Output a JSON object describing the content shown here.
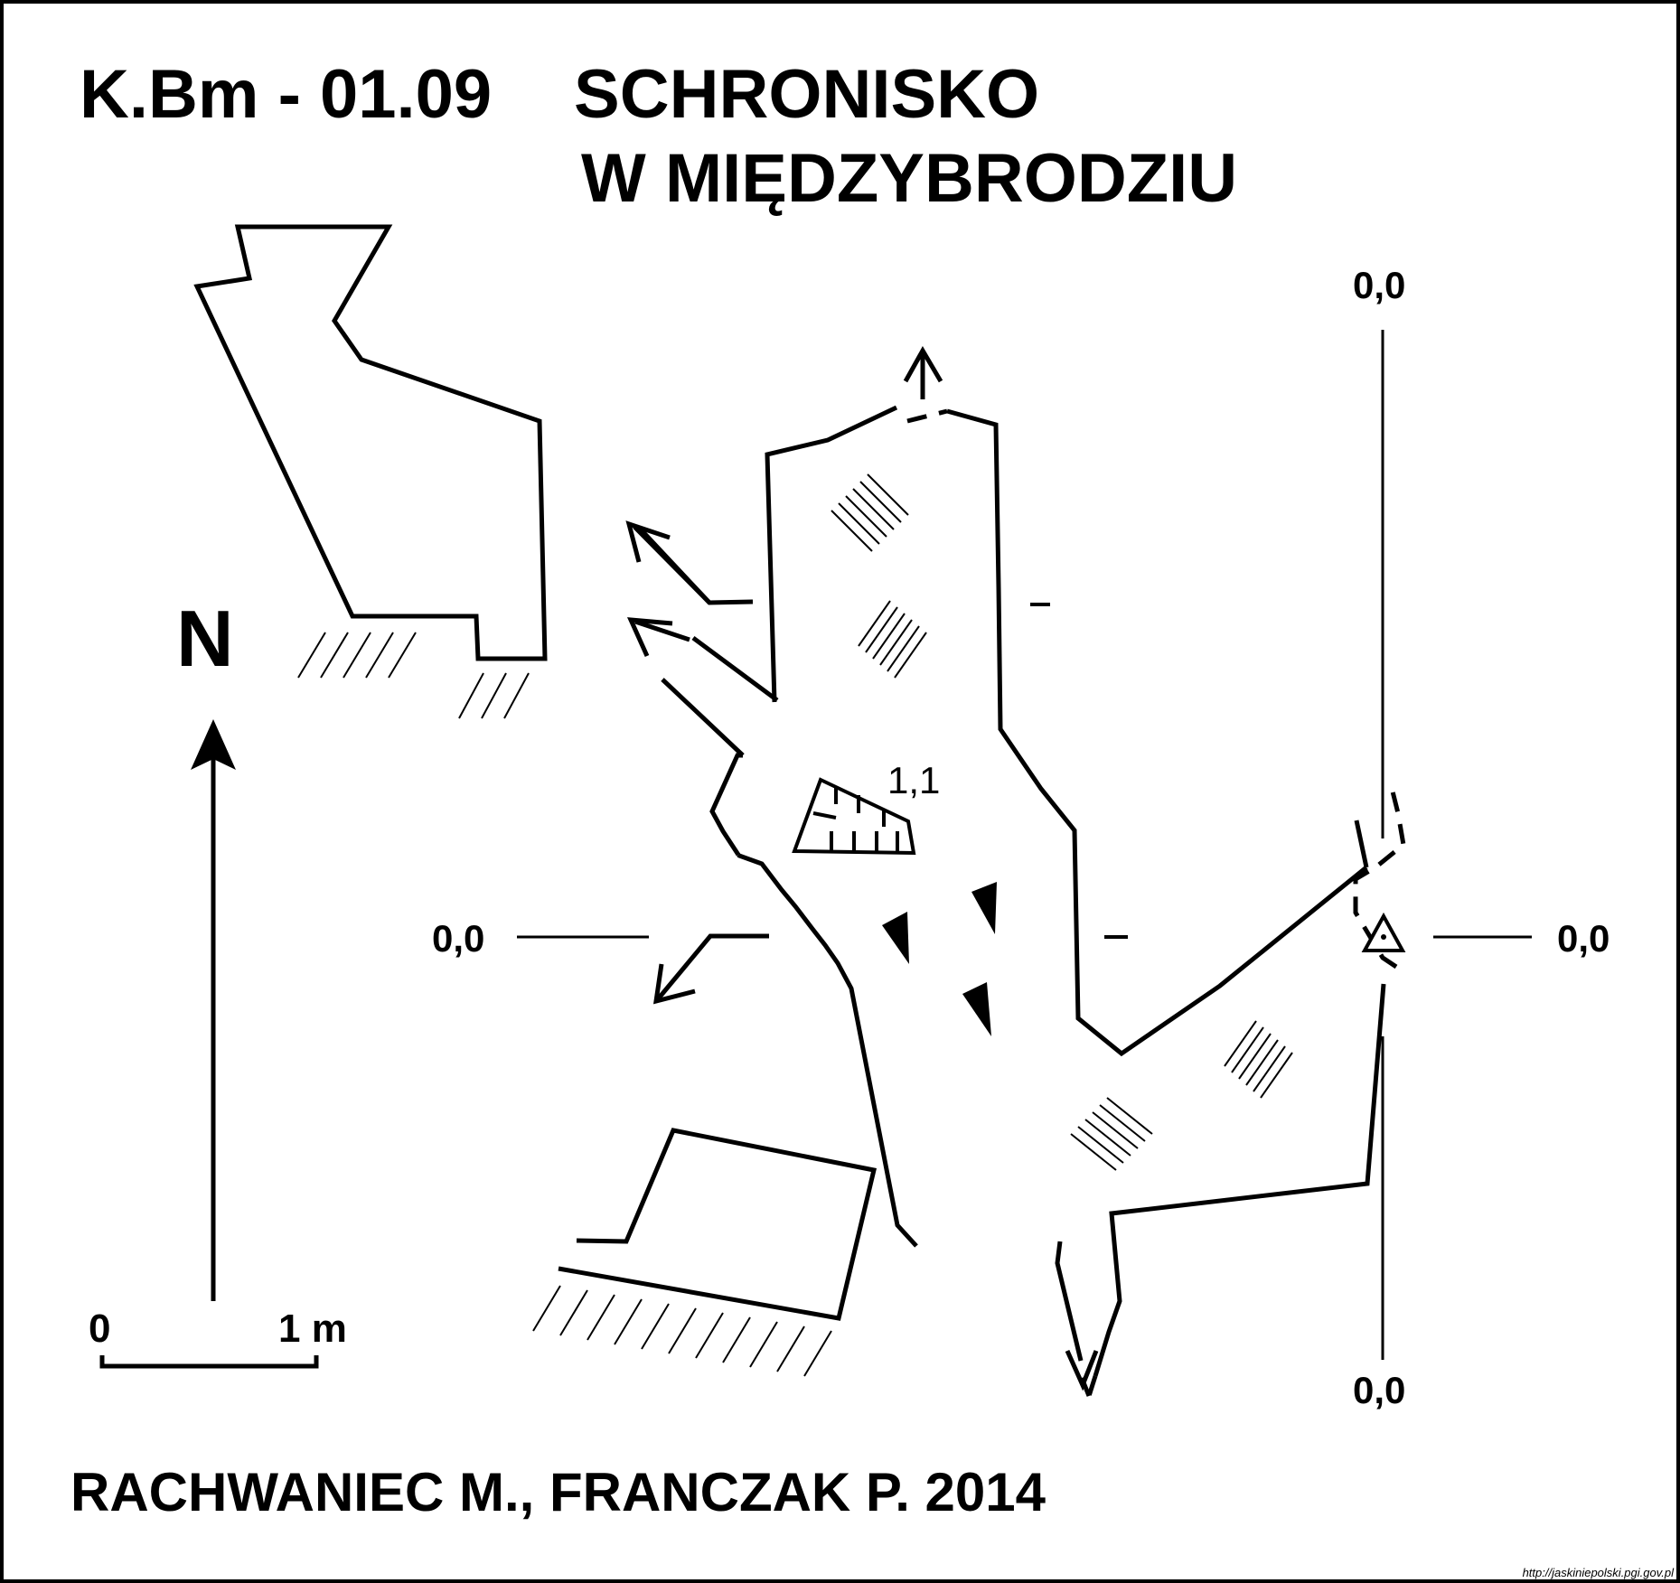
{
  "title": {
    "code": "K.Bm - 01.09",
    "name_line1": "SCHRONISKO",
    "name_line2": "W MIĘDZYBRODZIU"
  },
  "north_label": "N",
  "scale": {
    "zero": "0",
    "one": "1 m"
  },
  "elevations": {
    "top": "0,0",
    "left": "0,0",
    "right": "0,0",
    "bottom": "0,0",
    "chamber_height": "1,1"
  },
  "authors": "RACHWANIEC M., FRANCZAK P. 2014",
  "source_url": "http://jaskiniepolski.pgi.gov.pl",
  "colors": {
    "ink": "#000000",
    "background": "#ffffff"
  }
}
